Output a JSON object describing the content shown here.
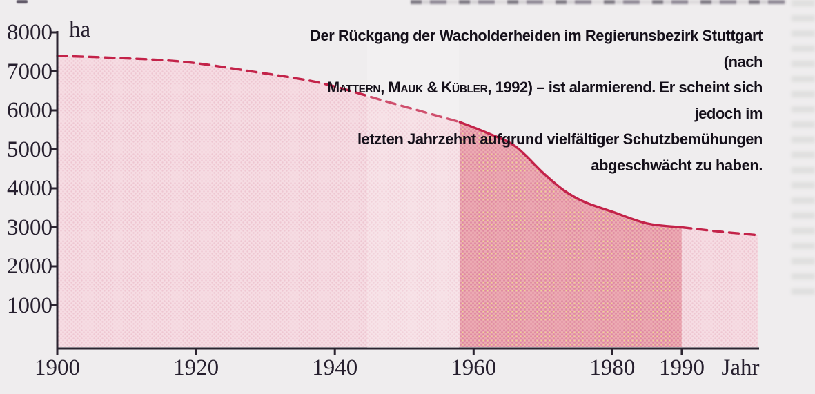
{
  "figure": {
    "caption": {
      "line1": "Der Rückgang der Wacholderheiden im Regierunsbezirk Stuttgart (nach",
      "line2_names": "Mattern, Mauk & Kübler",
      "line2_rest": ", 1992) – ist alarmierend. Er scheint sich jedoch im",
      "line3": "letzten Jahrzehnt aufgrund vielfältiger Schutzbemühungen",
      "line4": "abgeschwächt zu haben."
    }
  },
  "chart_data": {
    "type": "area",
    "xlabel": "Jahr",
    "ylabel": "ha",
    "xlim": [
      1900,
      2001
    ],
    "ylim": [
      0,
      8000
    ],
    "grid": false,
    "legend": false,
    "yticks": [
      {
        "label": "1000",
        "value": 1000
      },
      {
        "label": "2000",
        "value": 2000
      },
      {
        "label": "3000",
        "value": 3000
      },
      {
        "label": "4000",
        "value": 4000
      },
      {
        "label": "5000",
        "value": 5000
      },
      {
        "label": "6000",
        "value": 6000
      },
      {
        "label": "7000",
        "value": 7000
      },
      {
        "label": "8000",
        "value": 8000
      }
    ],
    "xticks": [
      {
        "label": "1900",
        "value": 1900
      },
      {
        "label": "1920",
        "value": 1920
      },
      {
        "label": "1940",
        "value": 1940
      },
      {
        "label": "1960",
        "value": 1960
      },
      {
        "label": "1980",
        "value": 1980
      },
      {
        "label": "1990",
        "value": 1990
      }
    ],
    "series": [
      {
        "name": "dashed-pre-1958",
        "style": "dashed",
        "fill": "light",
        "points": [
          [
            1900,
            7400
          ],
          [
            1908,
            7350
          ],
          [
            1918,
            7250
          ],
          [
            1928,
            7000
          ],
          [
            1938,
            6700
          ],
          [
            1948,
            6200
          ],
          [
            1958,
            5700
          ]
        ]
      },
      {
        "name": "solid-1958-1990",
        "style": "solid",
        "fill": "dark",
        "points": [
          [
            1958,
            5700
          ],
          [
            1962,
            5420
          ],
          [
            1966,
            5080
          ],
          [
            1970,
            4400
          ],
          [
            1973,
            3950
          ],
          [
            1976,
            3650
          ],
          [
            1980,
            3400
          ],
          [
            1985,
            3100
          ],
          [
            1990,
            3000
          ]
        ]
      },
      {
        "name": "dashed-post-1990",
        "style": "dashed",
        "fill": "light",
        "points": [
          [
            1990,
            3000
          ],
          [
            1995,
            2900
          ],
          [
            2001,
            2800
          ]
        ]
      }
    ],
    "colors": {
      "curve": "#c32349",
      "fill_light_base": "#f6dce3",
      "fill_light_dot": "#eec6d1",
      "fill_dark_base": "#ecaab3",
      "fill_dark_dot": "#df8aa0",
      "fill_dark_dot2": "#f0d98c",
      "axis": "#2b2430",
      "paper": "#efedee",
      "text": "#261f2e"
    }
  }
}
